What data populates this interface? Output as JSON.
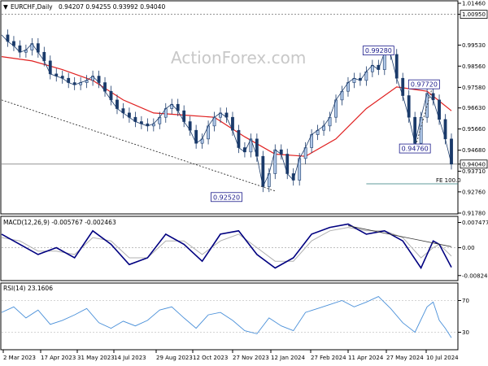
{
  "header": {
    "symbol": "EURCHF,Daily",
    "ohlc": "0.94207 0.94255 0.93992 0.94040",
    "watermark": "ActionForex.com"
  },
  "chart_data": [
    {
      "type": "candlestick",
      "x_ticks": [
        "2 Mar 2023",
        "17 Apr 2023",
        "31 May 2023",
        "14 Jul 2023",
        "29 Aug 2023",
        "12 Oct 2023",
        "27 Nov 2023",
        "12 Jan 2024",
        "27 Feb 2024",
        "11 Apr 2024",
        "27 May 2024",
        "10 Jul 2024"
      ],
      "y_ticks": [
        "1.01460",
        "1.00950",
        "0.99530",
        "0.98560",
        "0.97580",
        "0.96630",
        "0.95660",
        "0.94680",
        "0.94040",
        "0.93710",
        "0.92760",
        "0.91780"
      ],
      "ylim": [
        0.9178,
        1.0146
      ],
      "highlight_levels": [
        "1.00950",
        "0.94040"
      ],
      "labels": [
        {
          "text": "0.99280",
          "x": 62.0,
          "y": 0.9928
        },
        {
          "text": "0.97720",
          "x": 69.5,
          "y": 0.9772
        },
        {
          "text": "0.94760",
          "x": 68.0,
          "y": 0.9476
        },
        {
          "text": "0.92520",
          "x": 37.0,
          "y": 0.9252
        }
      ],
      "fe_label": "FE 100.0",
      "fe_level": 0.9313,
      "close_points": [
        [
          0,
          1.0
        ],
        [
          1,
          0.997
        ],
        [
          2,
          0.995
        ],
        [
          3,
          0.992
        ],
        [
          4,
          0.993
        ],
        [
          5,
          0.996
        ],
        [
          6,
          0.992
        ],
        [
          7,
          0.988
        ],
        [
          8,
          0.982
        ],
        [
          9,
          0.981
        ],
        [
          10,
          0.98
        ],
        [
          11,
          0.978
        ],
        [
          12,
          0.977
        ],
        [
          13,
          0.978
        ],
        [
          14,
          0.979
        ],
        [
          15,
          0.981
        ],
        [
          16,
          0.978
        ],
        [
          17,
          0.974
        ],
        [
          18,
          0.97
        ],
        [
          19,
          0.966
        ],
        [
          20,
          0.964
        ],
        [
          21,
          0.962
        ],
        [
          22,
          0.96
        ],
        [
          23,
          0.959
        ],
        [
          24,
          0.958
        ],
        [
          25,
          0.959
        ],
        [
          26,
          0.962
        ],
        [
          27,
          0.966
        ],
        [
          28,
          0.968
        ],
        [
          29,
          0.965
        ],
        [
          30,
          0.96
        ],
        [
          31,
          0.956
        ],
        [
          32,
          0.95
        ],
        [
          33,
          0.952
        ],
        [
          34,
          0.958
        ],
        [
          35,
          0.962
        ],
        [
          36,
          0.964
        ],
        [
          37,
          0.962
        ],
        [
          38,
          0.956
        ],
        [
          39,
          0.948
        ],
        [
          40,
          0.946
        ],
        [
          41,
          0.952
        ],
        [
          42,
          0.944
        ],
        [
          43,
          0.93
        ],
        [
          44,
          0.936
        ],
        [
          45,
          0.947
        ],
        [
          46,
          0.945
        ],
        [
          47,
          0.936
        ],
        [
          48,
          0.933
        ],
        [
          49,
          0.943
        ],
        [
          50,
          0.948
        ],
        [
          51,
          0.954
        ],
        [
          52,
          0.956
        ],
        [
          53,
          0.958
        ],
        [
          54,
          0.962
        ],
        [
          55,
          0.97
        ],
        [
          56,
          0.974
        ],
        [
          57,
          0.978
        ],
        [
          58,
          0.98
        ],
        [
          59,
          0.979
        ],
        [
          60,
          0.983
        ],
        [
          61,
          0.986
        ],
        [
          62,
          0.984
        ],
        [
          63,
          0.992
        ],
        [
          64,
          0.991
        ],
        [
          65,
          0.98
        ],
        [
          66,
          0.972
        ],
        [
          67,
          0.962
        ],
        [
          68,
          0.95
        ],
        [
          69,
          0.962
        ],
        [
          70,
          0.973
        ],
        [
          71,
          0.97
        ],
        [
          72,
          0.961
        ],
        [
          73,
          0.952
        ],
        [
          74,
          0.9404
        ]
      ],
      "ma_points": [
        [
          0,
          0.99
        ],
        [
          5,
          0.988
        ],
        [
          10,
          0.984
        ],
        [
          15,
          0.979
        ],
        [
          20,
          0.97
        ],
        [
          25,
          0.964
        ],
        [
          30,
          0.963
        ],
        [
          35,
          0.962
        ],
        [
          40,
          0.953
        ],
        [
          45,
          0.945
        ],
        [
          50,
          0.944
        ],
        [
          55,
          0.952
        ],
        [
          60,
          0.966
        ],
        [
          65,
          0.976
        ],
        [
          70,
          0.974
        ],
        [
          74,
          0.965
        ]
      ],
      "trendlines": [
        {
          "from": [
            0,
            0.97
          ],
          "to": [
            45,
            0.928
          ],
          "style": "dashed"
        },
        {
          "from": [
            68,
            0.9476
          ],
          "to": [
            71,
            0.9772
          ],
          "style": "dashed"
        }
      ]
    },
    {
      "type": "line",
      "title": "MACD(12,26,9) -0.005767 -0.002463",
      "y_ticks": [
        "0.007477",
        "0.00",
        "-0.00824"
      ],
      "ylim": [
        -0.0095,
        0.0088
      ],
      "series": [
        {
          "name": "MACD",
          "color": "#000080",
          "points": [
            [
              0,
              0.004
            ],
            [
              3,
              0.001
            ],
            [
              6,
              -0.002
            ],
            [
              9,
              0.0
            ],
            [
              12,
              -0.003
            ],
            [
              15,
              0.005
            ],
            [
              18,
              0.001
            ],
            [
              21,
              -0.005
            ],
            [
              24,
              -0.003
            ],
            [
              27,
              0.004
            ],
            [
              30,
              0.001
            ],
            [
              33,
              -0.004
            ],
            [
              36,
              0.004
            ],
            [
              39,
              0.005
            ],
            [
              42,
              -0.002
            ],
            [
              45,
              -0.006
            ],
            [
              48,
              -0.003
            ],
            [
              51,
              0.004
            ],
            [
              54,
              0.006
            ],
            [
              57,
              0.007
            ],
            [
              60,
              0.004
            ],
            [
              63,
              0.005
            ],
            [
              66,
              0.002
            ],
            [
              69,
              -0.006
            ],
            [
              71,
              0.002
            ],
            [
              72,
              0.001
            ],
            [
              74,
              -0.0058
            ]
          ]
        },
        {
          "name": "Signal",
          "color": "#b0b0b0",
          "points": [
            [
              0,
              0.003
            ],
            [
              3,
              0.002
            ],
            [
              6,
              -0.001
            ],
            [
              9,
              -0.001
            ],
            [
              12,
              -0.002
            ],
            [
              15,
              0.003
            ],
            [
              18,
              0.002
            ],
            [
              21,
              -0.003
            ],
            [
              24,
              -0.003
            ],
            [
              27,
              0.002
            ],
            [
              30,
              0.002
            ],
            [
              33,
              -0.002
            ],
            [
              36,
              0.002
            ],
            [
              39,
              0.004
            ],
            [
              42,
              0.0
            ],
            [
              45,
              -0.004
            ],
            [
              48,
              -0.004
            ],
            [
              51,
              0.002
            ],
            [
              54,
              0.005
            ],
            [
              57,
              0.006
            ],
            [
              60,
              0.005
            ],
            [
              63,
              0.005
            ],
            [
              66,
              0.003
            ],
            [
              69,
              -0.003
            ],
            [
              71,
              0.0
            ],
            [
              72,
              0.001
            ],
            [
              74,
              -0.0025
            ]
          ]
        }
      ],
      "trendline": {
        "from": [
          57,
          0.0065
        ],
        "to": [
          74,
          0.0003
        ]
      }
    },
    {
      "type": "line",
      "title": "RSI(14) 23.1606",
      "y_ticks": [
        "70",
        "30"
      ],
      "ylim": [
        10,
        90
      ],
      "series": [
        {
          "name": "RSI",
          "color": "#4a90d9",
          "points": [
            [
              0,
              55
            ],
            [
              2,
              62
            ],
            [
              4,
              48
            ],
            [
              6,
              58
            ],
            [
              8,
              40
            ],
            [
              10,
              45
            ],
            [
              12,
              52
            ],
            [
              14,
              60
            ],
            [
              16,
              42
            ],
            [
              18,
              35
            ],
            [
              20,
              44
            ],
            [
              22,
              38
            ],
            [
              24,
              45
            ],
            [
              26,
              58
            ],
            [
              28,
              62
            ],
            [
              30,
              48
            ],
            [
              32,
              35
            ],
            [
              34,
              52
            ],
            [
              36,
              55
            ],
            [
              38,
              45
            ],
            [
              40,
              32
            ],
            [
              42,
              28
            ],
            [
              44,
              48
            ],
            [
              46,
              38
            ],
            [
              48,
              32
            ],
            [
              50,
              55
            ],
            [
              52,
              60
            ],
            [
              54,
              65
            ],
            [
              56,
              70
            ],
            [
              58,
              62
            ],
            [
              60,
              68
            ],
            [
              62,
              75
            ],
            [
              64,
              60
            ],
            [
              66,
              42
            ],
            [
              68,
              30
            ],
            [
              70,
              62
            ],
            [
              71,
              68
            ],
            [
              72,
              45
            ],
            [
              73,
              35
            ],
            [
              74,
              23.16
            ]
          ]
        }
      ]
    }
  ]
}
